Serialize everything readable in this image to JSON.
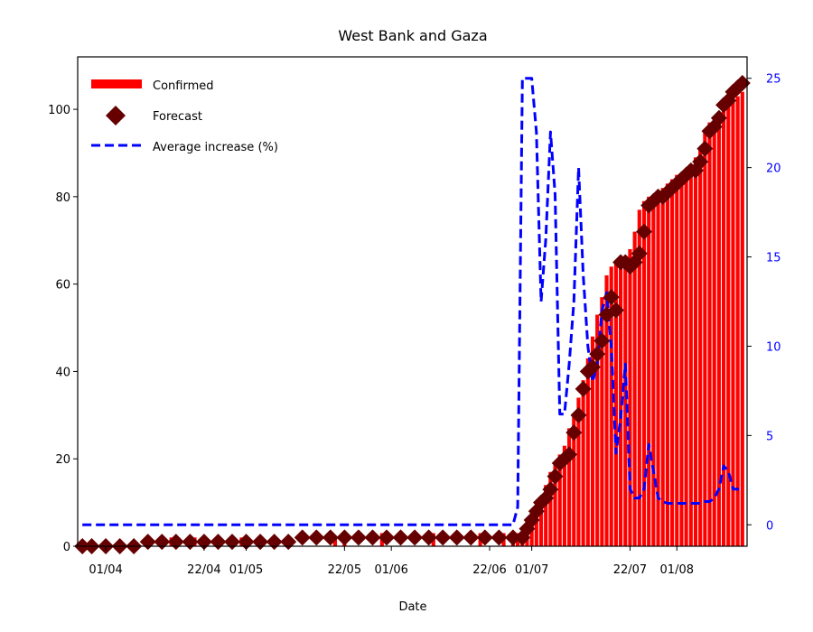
{
  "chart_data": {
    "type": "bar",
    "title": "West Bank and Gaza",
    "xlabel": "Date",
    "ylabel": "",
    "ylabel_right": "",
    "ylim": [
      0,
      112
    ],
    "ylim_right": [
      -1.2,
      26.2
    ],
    "yticks": [
      0,
      20,
      40,
      60,
      80,
      100
    ],
    "yticks_right": [
      0,
      5,
      10,
      15,
      20,
      25
    ],
    "x_start": "2020-03-26",
    "x_end": "2020-08-16",
    "xticks": [
      {
        "date": "2020-04-01",
        "label": "01/04"
      },
      {
        "date": "2020-04-22",
        "label": "22/04"
      },
      {
        "date": "2020-05-01",
        "label": "01/05"
      },
      {
        "date": "2020-05-22",
        "label": "22/05"
      },
      {
        "date": "2020-06-01",
        "label": "01/06"
      },
      {
        "date": "2020-06-22",
        "label": "22/06"
      },
      {
        "date": "2020-07-01",
        "label": "01/07"
      },
      {
        "date": "2020-07-22",
        "label": "22/07"
      },
      {
        "date": "2020-08-01",
        "label": "01/08"
      }
    ],
    "legend_position": "top-left",
    "colors": {
      "confirmed": "#ff0000",
      "forecast": "#660000",
      "average": "#0000ff"
    },
    "series": [
      {
        "name": "Confirmed",
        "kind": "bar",
        "x": [
          "2020-03-27",
          "2020-03-29",
          "2020-04-01",
          "2020-04-10",
          "2020-04-15",
          "2020-04-20",
          "2020-04-30",
          "2020-05-10",
          "2020-05-20",
          "2020-05-22",
          "2020-05-30",
          "2020-06-10",
          "2020-06-20",
          "2020-06-25",
          "2020-06-27",
          "2020-06-28",
          "2020-06-29",
          "2020-06-30",
          "2020-07-01",
          "2020-07-02",
          "2020-07-03",
          "2020-07-04",
          "2020-07-05",
          "2020-07-06",
          "2020-07-07",
          "2020-07-08",
          "2020-07-09",
          "2020-07-10",
          "2020-07-11",
          "2020-07-12",
          "2020-07-13",
          "2020-07-14",
          "2020-07-15",
          "2020-07-16",
          "2020-07-17",
          "2020-07-18",
          "2020-07-19",
          "2020-07-20",
          "2020-07-21",
          "2020-07-22",
          "2020-07-23",
          "2020-07-24",
          "2020-07-25",
          "2020-07-26",
          "2020-07-27",
          "2020-07-28",
          "2020-07-29",
          "2020-07-30",
          "2020-07-31",
          "2020-08-01",
          "2020-08-02",
          "2020-08-03",
          "2020-08-04",
          "2020-08-05",
          "2020-08-06",
          "2020-08-07",
          "2020-08-08",
          "2020-08-09",
          "2020-08-10",
          "2020-08-11",
          "2020-08-12",
          "2020-08-13",
          "2020-08-14",
          "2020-08-15"
        ],
        "values": [
          1,
          1,
          1,
          1,
          2,
          2,
          2,
          2,
          2,
          3,
          3,
          3,
          3,
          3,
          3,
          3,
          3,
          6,
          8,
          9,
          11,
          14,
          17,
          19,
          21,
          23,
          27,
          30,
          34,
          38,
          43,
          48,
          53,
          57,
          62,
          64,
          65,
          65,
          66,
          68,
          72,
          77,
          79,
          80,
          80,
          81,
          82,
          83,
          84,
          85,
          85,
          86,
          87,
          89,
          91,
          95,
          97,
          98,
          99,
          100,
          101,
          102,
          103,
          104
        ]
      },
      {
        "name": "Forecast",
        "kind": "scatter",
        "x": [
          "2020-03-27",
          "2020-03-29",
          "2020-04-01",
          "2020-04-04",
          "2020-04-07",
          "2020-04-10",
          "2020-04-13",
          "2020-04-16",
          "2020-04-19",
          "2020-04-22",
          "2020-04-25",
          "2020-04-28",
          "2020-05-01",
          "2020-05-04",
          "2020-05-07",
          "2020-05-10",
          "2020-05-13",
          "2020-05-16",
          "2020-05-19",
          "2020-05-22",
          "2020-05-25",
          "2020-05-28",
          "2020-05-31",
          "2020-06-03",
          "2020-06-06",
          "2020-06-09",
          "2020-06-12",
          "2020-06-15",
          "2020-06-18",
          "2020-06-21",
          "2020-06-24",
          "2020-06-27",
          "2020-06-29",
          "2020-06-30",
          "2020-07-01",
          "2020-07-02",
          "2020-07-03",
          "2020-07-04",
          "2020-07-05",
          "2020-07-06",
          "2020-07-07",
          "2020-07-08",
          "2020-07-09",
          "2020-07-10",
          "2020-07-11",
          "2020-07-12",
          "2020-07-13",
          "2020-07-14",
          "2020-07-15",
          "2020-07-16",
          "2020-07-17",
          "2020-07-18",
          "2020-07-19",
          "2020-07-20",
          "2020-07-21",
          "2020-07-22",
          "2020-07-23",
          "2020-07-24",
          "2020-07-25",
          "2020-07-26",
          "2020-07-27",
          "2020-07-28",
          "2020-07-29",
          "2020-07-30",
          "2020-07-31",
          "2020-08-01",
          "2020-08-02",
          "2020-08-03",
          "2020-08-04",
          "2020-08-05",
          "2020-08-06",
          "2020-08-07",
          "2020-08-08",
          "2020-08-09",
          "2020-08-10",
          "2020-08-11",
          "2020-08-12",
          "2020-08-13",
          "2020-08-14",
          "2020-08-15"
        ],
        "values": [
          0,
          0,
          0,
          0,
          0,
          1,
          1,
          1,
          1,
          1,
          1,
          1,
          1,
          1,
          1,
          1,
          2,
          2,
          2,
          2,
          2,
          2,
          2,
          2,
          2,
          2,
          2,
          2,
          2,
          2,
          2,
          2,
          2,
          4,
          6,
          8,
          10,
          11,
          13,
          16,
          19,
          20,
          21,
          26,
          30,
          36,
          40,
          41,
          44,
          47,
          53,
          57,
          54,
          65,
          65,
          64,
          65,
          67,
          72,
          78,
          79,
          80,
          80,
          81,
          82,
          83,
          84,
          85,
          86,
          86,
          88,
          91,
          95,
          96,
          98,
          101,
          102,
          104,
          105,
          106
        ]
      },
      {
        "name": "Average increase (%)",
        "kind": "line",
        "axis": "right",
        "x": [
          "2020-03-27",
          "2020-06-27",
          "2020-06-28",
          "2020-06-29",
          "2020-06-30",
          "2020-07-01",
          "2020-07-02",
          "2020-07-03",
          "2020-07-04",
          "2020-07-05",
          "2020-07-06",
          "2020-07-07",
          "2020-07-08",
          "2020-07-09",
          "2020-07-10",
          "2020-07-11",
          "2020-07-12",
          "2020-07-13",
          "2020-07-14",
          "2020-07-15",
          "2020-07-16",
          "2020-07-17",
          "2020-07-18",
          "2020-07-19",
          "2020-07-20",
          "2020-07-21",
          "2020-07-22",
          "2020-07-23",
          "2020-07-24",
          "2020-07-25",
          "2020-07-26",
          "2020-07-27",
          "2020-07-28",
          "2020-07-29",
          "2020-07-30",
          "2020-07-31",
          "2020-08-01",
          "2020-08-02",
          "2020-08-03",
          "2020-08-04",
          "2020-08-05",
          "2020-08-06",
          "2020-08-07",
          "2020-08-08",
          "2020-08-09",
          "2020-08-10",
          "2020-08-11",
          "2020-08-12",
          "2020-08-13",
          "2020-08-14",
          "2020-08-15"
        ],
        "values": [
          0,
          0,
          1,
          25,
          25,
          25,
          22,
          12.5,
          16,
          22,
          18.5,
          6.2,
          6.2,
          9,
          12.5,
          20,
          14,
          10,
          8,
          9,
          12,
          13,
          10,
          4,
          6,
          9,
          2,
          1.5,
          1.5,
          2,
          4.5,
          3,
          1.5,
          1.3,
          1.2,
          1.2,
          1.2,
          1.2,
          1.2,
          1.2,
          1.2,
          1.2,
          1.3,
          1.3,
          1.5,
          2,
          3.3,
          3,
          2,
          2,
          2
        ]
      }
    ]
  }
}
